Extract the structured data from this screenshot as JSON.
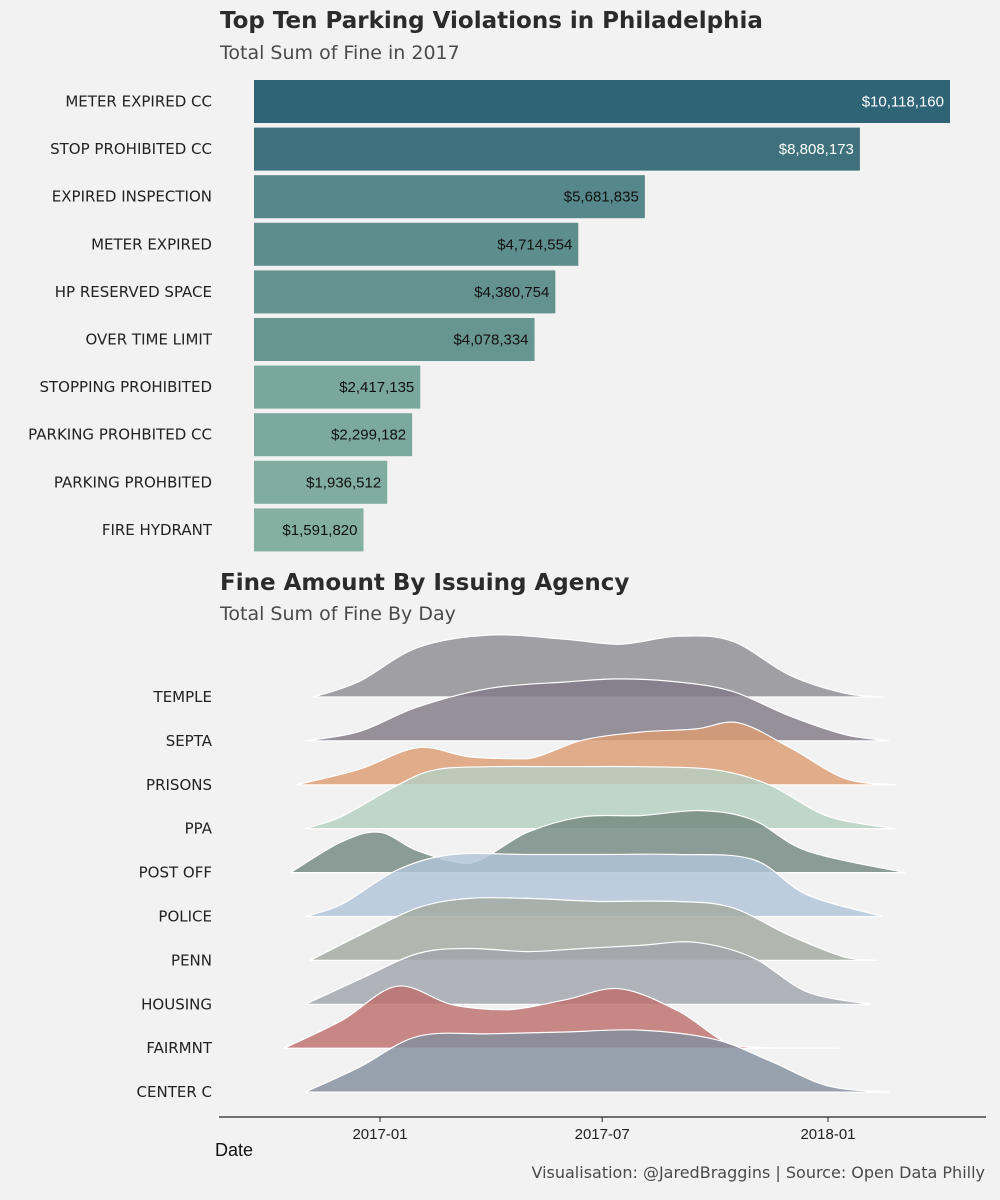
{
  "chart_data": [
    {
      "type": "bar",
      "orientation": "horizontal",
      "title": "Top Ten Parking Violations in Philadelphia",
      "subtitle": "Total Sum of Fine in 2017",
      "categories": [
        "METER EXPIRED CC",
        "STOP PROHIBITED CC",
        "EXPIRED INSPECTION",
        "METER EXPIRED",
        "HP RESERVED SPACE",
        "OVER TIME LIMIT",
        "STOPPING PROHIBITED",
        "PARKING PROHBITED CC",
        "PARKING PROHBITED",
        "FIRE HYDRANT"
      ],
      "values": [
        10118160,
        8808173,
        5681835,
        4714554,
        4380754,
        4078334,
        2417135,
        2299182,
        1936512,
        1591820
      ],
      "value_labels": [
        "$10,118,160",
        "$8,808,173",
        "$5,681,835",
        "$4,714,554",
        "$4,380,754",
        "$4,078,334",
        "$2,417,135",
        "$2,299,182",
        "$1,936,512",
        "$1,591,820"
      ],
      "colors": [
        "#2e6476",
        "#3e717c",
        "#56878a",
        "#5d8d8c",
        "#63928f",
        "#67958f",
        "#7aa79c",
        "#7ca99d",
        "#80ad9f",
        "#83b0a1"
      ],
      "label_colors": [
        "#ffffff",
        "#ffffff",
        "#111111",
        "#111111",
        "#111111",
        "#111111",
        "#111111",
        "#111111",
        "#111111",
        "#111111"
      ],
      "xlim": [
        0,
        10118160
      ],
      "grid": false
    },
    {
      "type": "area",
      "subtype": "ridgeline",
      "title": "Fine Amount By Issuing Agency",
      "subtitle": "Total Sum of Fine By Day",
      "xlabel": "Date",
      "x_ticks": [
        "2017-01",
        "2017-07",
        "2018-01"
      ],
      "x_tick_dates": [
        "2017-01-01",
        "2017-07-01",
        "2018-01-01"
      ],
      "xlim": [
        "2016-08-15",
        "2018-03-15"
      ],
      "categories": [
        "TEMPLE",
        "SEPTA",
        "PRISONS",
        "PPA",
        "POST OFF",
        "POLICE",
        "PENN",
        "HOUSING",
        "FAIRMNT",
        "CENTER C"
      ],
      "series": [
        {
          "name": "TEMPLE",
          "color": "#8e8d92",
          "x": [
            "2016-11-08",
            "2016-12-15",
            "2017-02-01",
            "2017-04-01",
            "2017-06-01",
            "2017-07-15",
            "2017-09-01",
            "2017-10-15",
            "2017-12-01",
            "2018-01-15",
            "2018-02-15"
          ],
          "y": [
            0.0,
            0.25,
            0.8,
            1.0,
            0.93,
            0.85,
            0.98,
            0.9,
            0.35,
            0.06,
            0.0
          ]
        },
        {
          "name": "SEPTA",
          "color": "#817a87",
          "x": [
            "2016-11-01",
            "2016-12-15",
            "2017-02-01",
            "2017-04-01",
            "2017-06-01",
            "2017-07-15",
            "2017-09-01",
            "2017-10-15",
            "2017-12-01",
            "2018-01-15",
            "2018-02-20"
          ],
          "y": [
            0.0,
            0.15,
            0.55,
            0.85,
            0.95,
            1.0,
            0.95,
            0.8,
            0.4,
            0.1,
            0.0
          ]
        },
        {
          "name": "PRISONS",
          "color": "#dc9c73",
          "x": [
            "2016-10-25",
            "2016-12-15",
            "2017-02-01",
            "2017-03-15",
            "2017-05-01",
            "2017-06-15",
            "2017-08-01",
            "2017-09-15",
            "2017-10-20",
            "2017-12-01",
            "2018-01-15",
            "2018-02-25"
          ],
          "y": [
            0.0,
            0.25,
            0.6,
            0.45,
            0.42,
            0.72,
            0.85,
            0.9,
            1.0,
            0.6,
            0.1,
            0.0
          ]
        },
        {
          "name": "PPA",
          "color": "#b4cfc2",
          "x": [
            "2016-11-01",
            "2016-12-01",
            "2017-01-15",
            "2017-02-15",
            "2017-04-01",
            "2017-06-01",
            "2017-08-01",
            "2017-10-01",
            "2017-11-15",
            "2018-01-01",
            "2018-02-25"
          ],
          "y": [
            0.0,
            0.2,
            0.7,
            0.95,
            1.0,
            1.0,
            1.0,
            0.95,
            0.7,
            0.2,
            0.0
          ]
        },
        {
          "name": "POST OFF",
          "color": "#748880",
          "x": [
            "2016-10-20",
            "2016-12-01",
            "2017-01-01",
            "2017-02-01",
            "2017-03-15",
            "2017-05-01",
            "2017-06-15",
            "2017-08-01",
            "2017-09-20",
            "2017-11-01",
            "2017-12-15",
            "2018-03-05"
          ],
          "y": [
            0.0,
            0.5,
            0.65,
            0.35,
            0.15,
            0.65,
            0.9,
            0.92,
            1.0,
            0.85,
            0.35,
            0.0
          ]
        },
        {
          "name": "POLICE",
          "color": "#b1c4d8",
          "x": [
            "2016-11-01",
            "2016-12-01",
            "2017-01-15",
            "2017-03-01",
            "2017-05-01",
            "2017-07-01",
            "2017-09-01",
            "2017-11-01",
            "2017-12-15",
            "2018-02-15"
          ],
          "y": [
            0.0,
            0.2,
            0.75,
            1.0,
            1.0,
            1.0,
            1.0,
            0.92,
            0.35,
            0.0
          ]
        },
        {
          "name": "PENN",
          "color": "#a2aa9f",
          "x": [
            "2016-11-05",
            "2016-12-15",
            "2017-02-01",
            "2017-03-15",
            "2017-05-01",
            "2017-07-01",
            "2017-09-01",
            "2017-10-15",
            "2017-12-01",
            "2018-01-15",
            "2018-02-10"
          ],
          "y": [
            0.0,
            0.4,
            0.85,
            1.0,
            1.0,
            0.95,
            0.95,
            0.85,
            0.4,
            0.05,
            0.0
          ]
        },
        {
          "name": "HOUSING",
          "color": "#a1a5ad",
          "x": [
            "2016-11-01",
            "2016-12-15",
            "2017-02-01",
            "2017-03-15",
            "2017-05-01",
            "2017-06-15",
            "2017-08-01",
            "2017-09-15",
            "2017-11-01",
            "2017-12-15",
            "2018-02-05"
          ],
          "y": [
            0.0,
            0.4,
            0.82,
            0.9,
            0.85,
            0.9,
            0.95,
            1.0,
            0.75,
            0.2,
            0.0
          ]
        },
        {
          "name": "FAIRMNT",
          "color": "#bd6f6d",
          "x": [
            "2016-10-15",
            "2016-12-01",
            "2017-01-15",
            "2017-03-01",
            "2017-04-15",
            "2017-06-01",
            "2017-07-15",
            "2017-09-01",
            "2017-10-15",
            "2017-12-01",
            "2018-01-10"
          ],
          "y": [
            0.0,
            0.45,
            1.0,
            0.7,
            0.62,
            0.78,
            0.96,
            0.6,
            0.05,
            0.0,
            0.0
          ]
        },
        {
          "name": "CENTER C",
          "color": "#848f9f",
          "x": [
            "2016-11-01",
            "2016-12-15",
            "2017-02-01",
            "2017-04-01",
            "2017-06-01",
            "2017-08-01",
            "2017-10-01",
            "2017-11-15",
            "2018-01-01",
            "2018-02-20"
          ],
          "y": [
            0.0,
            0.4,
            0.9,
            0.94,
            0.97,
            1.0,
            0.85,
            0.5,
            0.1,
            0.0
          ]
        }
      ],
      "grid": false
    }
  ],
  "caption": "Visualisation: @JaredBraggins  |  Source: Open Data Philly"
}
